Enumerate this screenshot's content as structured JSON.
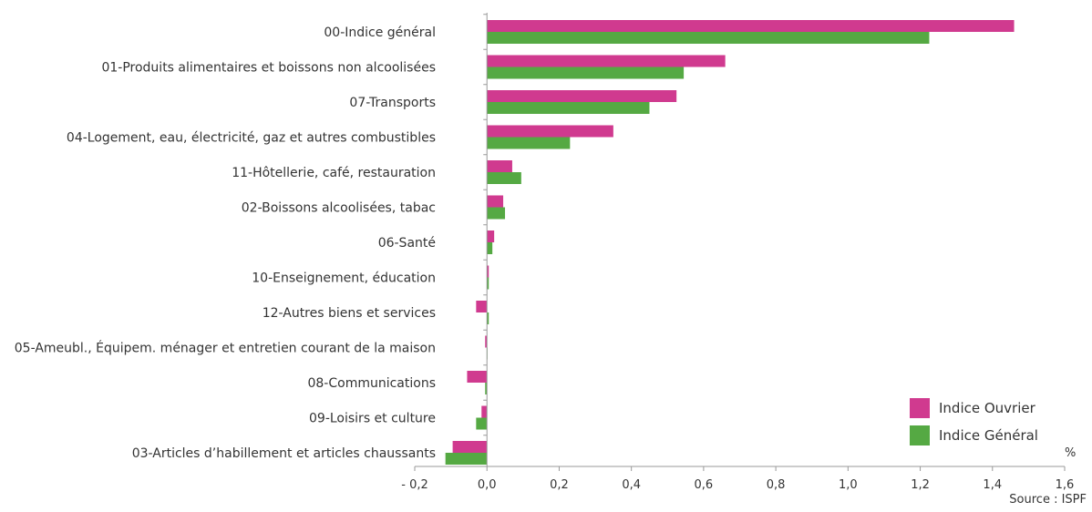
{
  "chart_data": {
    "type": "bar",
    "orientation": "horizontal",
    "categories": [
      "00-Indice général",
      "01-Produits alimentaires et boissons non alcoolisées",
      "07-Transports",
      "04-Logement, eau, électricité, gaz et autres combustibles",
      "11-Hôtellerie, café, restauration",
      "02-Boissons alcoolisées, tabac",
      "06-Santé",
      "10-Enseignement, éducation",
      "12-Autres biens et services",
      "05-Ameubl., Équipem. ménager et entretien courant de la maison",
      "08-Communications",
      "09-Loisirs et culture",
      "03-Articles d’habillement et articles chaussants"
    ],
    "series": [
      {
        "name": "Indice Ouvrier",
        "color": "#d03a8f",
        "values": [
          1.46,
          0.66,
          0.525,
          0.35,
          0.07,
          0.045,
          0.02,
          0.005,
          -0.03,
          -0.005,
          -0.055,
          -0.015,
          -0.095
        ]
      },
      {
        "name": "Indice Général",
        "color": "#55a943",
        "values": [
          1.225,
          0.545,
          0.45,
          0.23,
          0.095,
          0.05,
          0.015,
          0.005,
          0.005,
          0.0,
          -0.005,
          -0.03,
          -0.115
        ]
      }
    ],
    "xlim": [
      -0.2,
      1.6
    ],
    "xticks": [
      -0.2,
      0.0,
      0.2,
      0.4,
      0.6,
      0.8,
      1.0,
      1.2,
      1.4,
      1.6
    ],
    "xtick_labels": [
      "- 0,2",
      "0,0",
      "0,2",
      "0,4",
      "0,6",
      "0,8",
      "1,0",
      "1,2",
      "1,4",
      "1,6"
    ],
    "xunit": "%",
    "legend_position": "bottom-right",
    "grid": false
  },
  "source": "Source : ISPF"
}
